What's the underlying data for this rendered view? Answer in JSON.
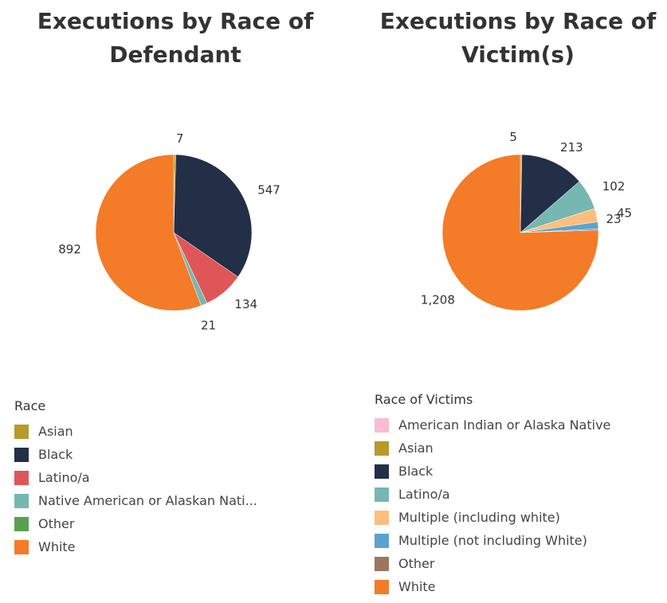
{
  "chart_data": [
    {
      "type": "pie",
      "title": "Executions by Race of Defendant",
      "legend_title": "Race",
      "legend_items": [
        "Asian",
        "Black",
        "Latino/a",
        "Native American or Alaskan Nati...",
        "Other",
        "White"
      ],
      "slices": [
        {
          "label": "Asian",
          "value": 7,
          "display": "7",
          "color": "#b8992a"
        },
        {
          "label": "Black",
          "value": 547,
          "display": "547",
          "color": "#232f47"
        },
        {
          "label": "Latino/a",
          "value": 134,
          "display": "134",
          "color": "#e05658"
        },
        {
          "label": "Native American or Alaskan Nati...",
          "value": 21,
          "display": "21",
          "color": "#76b7b2"
        },
        {
          "label": "Other",
          "value": 0,
          "display": "",
          "color": "#59a14f"
        },
        {
          "label": "White",
          "value": 892,
          "display": "892",
          "color": "#f47b28"
        }
      ]
    },
    {
      "type": "pie",
      "title": "Executions by Race of Victim(s)",
      "legend_title": "Race of Victims",
      "legend_items": [
        "American Indian or Alaska Native",
        "Asian",
        "Black",
        "Latino/a",
        "Multiple (including white)",
        "Multiple (not including White)",
        "Other",
        "White"
      ],
      "slices": [
        {
          "label": "American Indian or Alaska Native",
          "value": 0,
          "display": "",
          "color": "#f9bcd2"
        },
        {
          "label": "Asian",
          "value": 5,
          "display": "5",
          "color": "#b8992a"
        },
        {
          "label": "Black",
          "value": 213,
          "display": "213",
          "color": "#232f47"
        },
        {
          "label": "Latino/a",
          "value": 102,
          "display": "102",
          "color": "#76b7b2"
        },
        {
          "label": "Multiple (including white)",
          "value": 45,
          "display": "45",
          "color": "#ffbe7d"
        },
        {
          "label": "Multiple (not including White)",
          "value": 23,
          "display": "23",
          "color": "#5ba3cf"
        },
        {
          "label": "Other",
          "value": 4,
          "display": "",
          "color": "#9d7660"
        },
        {
          "label": "White",
          "value": 1208,
          "display": "1,208",
          "color": "#f47b28"
        }
      ]
    }
  ]
}
